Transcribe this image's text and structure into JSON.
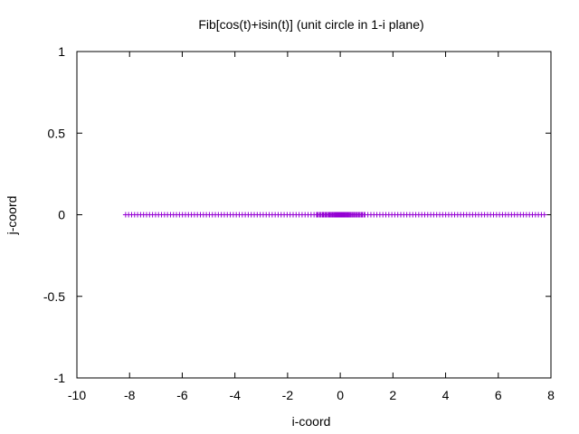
{
  "chart_data": {
    "type": "scatter",
    "title": "Fib[cos(t)+isin(t)] (unit circle in 1-i plane)",
    "xlabel": "i-coord",
    "ylabel": "j-coord",
    "xlim": [
      -10,
      8
    ],
    "ylim": [
      -1,
      1
    ],
    "xticks": [
      -10,
      -8,
      -6,
      -4,
      -2,
      0,
      2,
      4,
      6,
      8
    ],
    "xtick_labels": [
      "-10",
      "-8",
      "-6",
      "-4",
      "-2",
      "0",
      "2",
      "4",
      "6",
      "8"
    ],
    "yticks": [
      -1,
      -0.5,
      0,
      0.5,
      1
    ],
    "ytick_labels": [
      "-1",
      "-0.5",
      "0",
      "0.5",
      "1"
    ],
    "grid": false,
    "legend": "none",
    "marker": "plus",
    "series": [
      {
        "color": "#9400d3",
        "x_range": [
          -8.15,
          7.75
        ],
        "y": 0
      }
    ]
  }
}
